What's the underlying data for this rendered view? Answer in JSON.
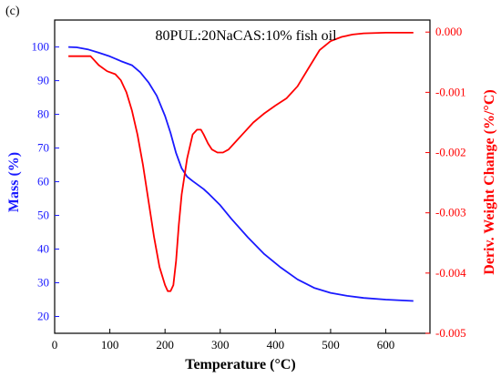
{
  "panel_label": "(c)",
  "chart_data": {
    "type": "line",
    "title": "80PUL:20NaCAS:10% fish oil",
    "xlabel": "Temperature (°C)",
    "ylabel_left": "Mass (%)",
    "ylabel_right": "Deriv. Weight Change (%/°C)",
    "xlim": [
      0,
      680
    ],
    "ylim_left": [
      15,
      108
    ],
    "ylim_right": [
      -0.005,
      0.0002
    ],
    "x_ticks": [
      0,
      100,
      200,
      300,
      400,
      500,
      600
    ],
    "y_left_ticks": [
      20,
      30,
      40,
      50,
      60,
      70,
      80,
      90,
      100
    ],
    "y_right_ticks": [
      {
        "value": 0.0,
        "label": "0.000"
      },
      {
        "value": -0.001,
        "label": "-0.001"
      },
      {
        "value": -0.002,
        "label": "-0.002"
      },
      {
        "value": -0.003,
        "label": "-0.003"
      },
      {
        "value": -0.004,
        "label": "-0.004"
      },
      {
        "value": -0.005,
        "label": "-0.005"
      }
    ],
    "grid": false,
    "colors": {
      "mass": "#1a1aff",
      "deriv": "#ff0000",
      "axes": "#000000"
    },
    "series": [
      {
        "axis": "left",
        "color": "#1a1aff",
        "x": [
          25,
          40,
          60,
          80,
          100,
          120,
          140,
          155,
          170,
          185,
          200,
          210,
          220,
          230,
          240,
          250,
          260,
          270,
          280,
          300,
          320,
          350,
          380,
          410,
          440,
          470,
          500,
          530,
          560,
          600,
          650
        ],
        "y": [
          100.0,
          99.9,
          99.3,
          98.3,
          97.2,
          95.8,
          94.6,
          92.5,
          89.5,
          85.5,
          79.5,
          74.5,
          68.5,
          64.0,
          61.5,
          60.2,
          59.0,
          57.8,
          56.3,
          53.0,
          49.0,
          43.5,
          38.5,
          34.5,
          31.0,
          28.5,
          27.0,
          26.1,
          25.5,
          25.0,
          24.6
        ]
      },
      {
        "axis": "right",
        "color": "#ff0000",
        "x": [
          25,
          60,
          65,
          80,
          95,
          110,
          120,
          130,
          140,
          150,
          160,
          170,
          180,
          190,
          200,
          205,
          210,
          215,
          220,
          225,
          230,
          240,
          250,
          258,
          265,
          270,
          278,
          285,
          295,
          305,
          315,
          325,
          340,
          360,
          380,
          400,
          420,
          440,
          460,
          480,
          500,
          520,
          540,
          560,
          600,
          650
        ],
        "y": [
          -0.0004,
          -0.0004,
          -0.0004,
          -0.00055,
          -0.00065,
          -0.0007,
          -0.0008,
          -0.001,
          -0.0013,
          -0.0017,
          -0.0022,
          -0.0028,
          -0.0034,
          -0.0039,
          -0.0042,
          -0.0043,
          -0.0043,
          -0.0042,
          -0.0038,
          -0.0032,
          -0.0027,
          -0.0021,
          -0.0017,
          -0.00162,
          -0.00162,
          -0.0017,
          -0.00185,
          -0.00195,
          -0.002,
          -0.002,
          -0.00195,
          -0.00185,
          -0.0017,
          -0.0015,
          -0.00135,
          -0.00122,
          -0.0011,
          -0.0009,
          -0.0006,
          -0.0003,
          -0.00015,
          -8e-05,
          -4e-05,
          -2e-05,
          -1e-05,
          -1e-05
        ]
      }
    ]
  }
}
